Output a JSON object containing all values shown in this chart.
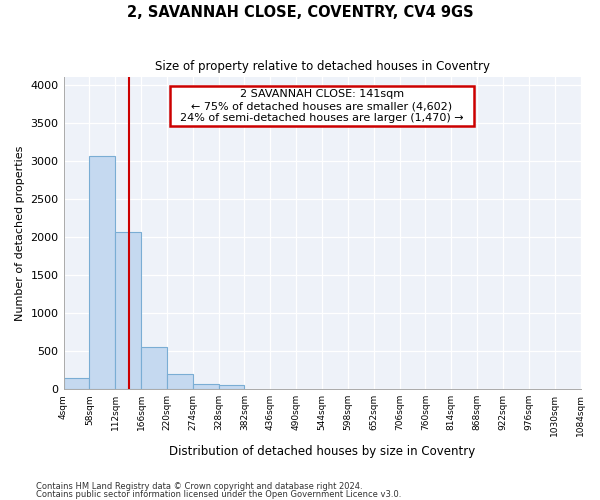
{
  "title": "2, SAVANNAH CLOSE, COVENTRY, CV4 9GS",
  "subtitle": "Size of property relative to detached houses in Coventry",
  "xlabel": "Distribution of detached houses by size in Coventry",
  "ylabel": "Number of detached properties",
  "footnote1": "Contains HM Land Registry data © Crown copyright and database right 2024.",
  "footnote2": "Contains public sector information licensed under the Open Government Licence v3.0.",
  "property_label": "2 SAVANNAH CLOSE: 141sqm",
  "annotation_line1": "← 75% of detached houses are smaller (4,602)",
  "annotation_line2": "24% of semi-detached houses are larger (1,470) →",
  "bar_color": "#c5d9f0",
  "bar_edge_color": "#7aadd4",
  "vline_color": "#cc0000",
  "annotation_box_edge_color": "#cc0000",
  "background_color": "#ffffff",
  "plot_bg_color": "#eef2f9",
  "grid_color": "#ffffff",
  "bin_edges": [
    4,
    58,
    112,
    166,
    220,
    274,
    328,
    382,
    436,
    490,
    544,
    598,
    652,
    706,
    760,
    814,
    868,
    922,
    976,
    1030,
    1084
  ],
  "bar_heights": [
    150,
    3060,
    2070,
    560,
    200,
    70,
    60,
    0,
    0,
    0,
    0,
    0,
    0,
    0,
    0,
    0,
    0,
    0,
    0,
    0
  ],
  "vline_x": 141,
  "ylim": [
    0,
    4100
  ],
  "yticks": [
    0,
    500,
    1000,
    1500,
    2000,
    2500,
    3000,
    3500,
    4000
  ],
  "figsize": [
    6.0,
    5.0
  ],
  "dpi": 100
}
